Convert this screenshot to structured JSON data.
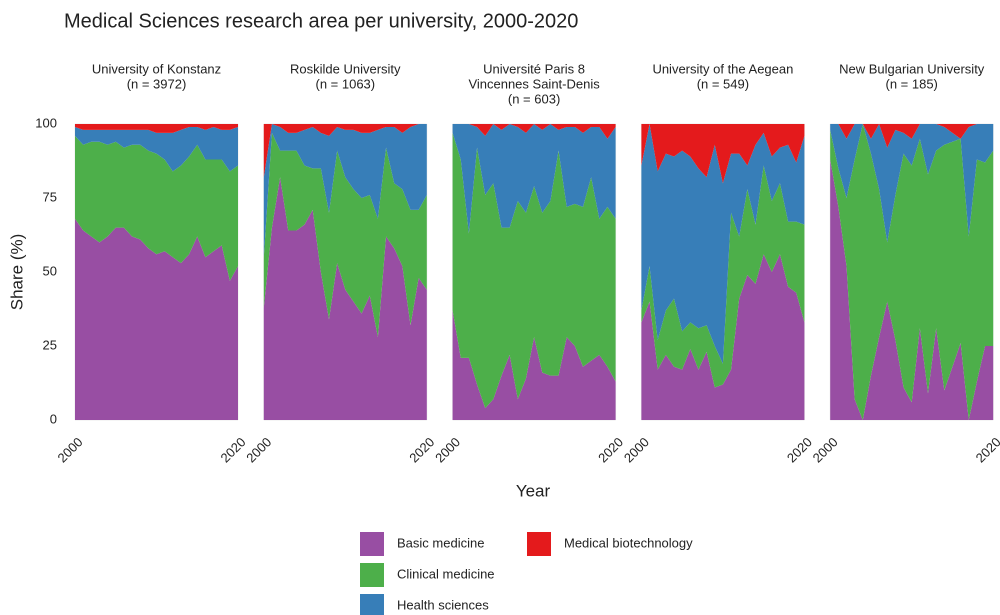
{
  "chart_data": {
    "type": "stacked_area",
    "title": "Medical Sciences research area per university, 2000-2020",
    "x_label": "Year",
    "y_label": "Share (%)",
    "x": [
      2000,
      2001,
      2002,
      2003,
      2004,
      2005,
      2006,
      2007,
      2008,
      2009,
      2010,
      2011,
      2012,
      2013,
      2014,
      2015,
      2016,
      2017,
      2018,
      2019,
      2020
    ],
    "xlim": [
      2000,
      2020
    ],
    "xticks": [
      2000,
      2020
    ],
    "ylim": [
      0,
      100
    ],
    "yticks": [
      0,
      25,
      50,
      75,
      100
    ],
    "grid": true,
    "legend": "bottom",
    "series": [
      {
        "name": "Basic medicine",
        "color": "#984ea3"
      },
      {
        "name": "Clinical medicine",
        "color": "#4daf4a"
      },
      {
        "name": "Health sciences",
        "color": "#377eb8"
      },
      {
        "name": "Medical biotechnology",
        "color": "#e41a1c"
      }
    ],
    "facets": [
      {
        "title": [
          "University of Konstanz",
          "(n = 3972)"
        ],
        "series": [
          {
            "values": [
              68,
              64,
              62,
              60,
              62,
              65,
              65,
              62,
              61,
              58,
              56,
              57,
              55,
              53,
              56,
              62,
              55,
              57,
              59,
              47,
              52
            ]
          },
          {
            "values": [
              28,
              29,
              32,
              34,
              31,
              29,
              27,
              31,
              32,
              33,
              34,
              31,
              29,
              33,
              33,
              31,
              33,
              31,
              29,
              37,
              34
            ]
          },
          {
            "values": [
              3,
              5,
              4,
              4,
              5,
              4,
              6,
              5,
              5,
              7,
              7,
              9,
              13,
              12,
              10,
              6,
              10,
              11,
              10,
              14,
              13
            ]
          },
          {
            "values": [
              1,
              2,
              2,
              2,
              2,
              2,
              2,
              2,
              2,
              2,
              3,
              3,
              3,
              2,
              1,
              1,
              2,
              1,
              2,
              2,
              1
            ]
          }
        ]
      },
      {
        "title": [
          "Roskilde University",
          "(n = 1063)"
        ],
        "series": [
          {
            "values": [
              38,
              65,
              82,
              64,
              64,
              66,
              71,
              50,
              34,
              53,
              44,
              40,
              36,
              42,
              28,
              62,
              58,
              52,
              32,
              48,
              44
            ]
          },
          {
            "values": [
              17,
              32,
              9,
              27,
              27,
              20,
              14,
              35,
              36,
              38,
              38,
              38,
              39,
              34,
              40,
              30,
              22,
              26,
              39,
              23,
              32
            ]
          },
          {
            "values": [
              27,
              3,
              8,
              6,
              6,
              12,
              14,
              12,
              26,
              8,
              16,
              20,
              22,
              21,
              30,
              7,
              19,
              19,
              28,
              29,
              24
            ]
          },
          {
            "values": [
              18,
              0,
              1,
              3,
              3,
              2,
              1,
              3,
              4,
              1,
              2,
              2,
              3,
              3,
              2,
              1,
              1,
              3,
              1,
              0,
              0
            ]
          }
        ]
      },
      {
        "title": [
          "Université Paris 8",
          "Vincennes Saint-Denis",
          "(n = 603)"
        ],
        "series": [
          {
            "values": [
              37,
              21,
              21,
              12,
              4,
              7,
              15,
              22,
              7,
              14,
              28,
              16,
              15,
              15,
              28,
              25,
              18,
              20,
              22,
              18,
              13
            ]
          },
          {
            "values": [
              60,
              67,
              42,
              80,
              72,
              73,
              50,
              43,
              67,
              56,
              51,
              54,
              59,
              76,
              44,
              48,
              54,
              62,
              46,
              54,
              55
            ]
          },
          {
            "values": [
              3,
              12,
              37,
              7,
              20,
              20,
              33,
              35,
              25,
              27,
              21,
              28,
              26,
              7,
              27,
              26,
              25,
              17,
              31,
              23,
              31
            ]
          },
          {
            "values": [
              0,
              0,
              0,
              1,
              4,
              0,
              2,
              0,
              1,
              3,
              0,
              2,
              0,
              2,
              1,
              1,
              3,
              1,
              1,
              5,
              1
            ]
          }
        ]
      },
      {
        "title": [
          "University of the Aegean",
          "(n = 549)"
        ],
        "series": [
          {
            "values": [
              33,
              40,
              17,
              22,
              18,
              17,
              24,
              17,
              23,
              11,
              12,
              17,
              41,
              49,
              46,
              56,
              50,
              56,
              45,
              43,
              33
            ]
          },
          {
            "values": [
              4,
              12,
              10,
              15,
              23,
              13,
              9,
              14,
              9,
              14,
              7,
              53,
              21,
              29,
              20,
              30,
              24,
              24,
              22,
              24,
              33
            ]
          },
          {
            "values": [
              49,
              48,
              57,
              53,
              48,
              61,
              56,
              54,
              50,
              68,
              61,
              20,
              28,
              8,
              27,
              11,
              15,
              12,
              26,
              20,
              30
            ]
          },
          {
            "values": [
              14,
              0,
              16,
              10,
              11,
              9,
              11,
              15,
              18,
              7,
              20,
              10,
              10,
              14,
              7,
              3,
              11,
              8,
              7,
              13,
              4
            ]
          }
        ]
      },
      {
        "title": [
          "New Bulgarian University",
          "(n = 185)"
        ],
        "series": [
          {
            "values": [
              88,
              72,
              52,
              7,
              0,
              15,
              28,
              40,
              27,
              11,
              6,
              31,
              9,
              31,
              10,
              18,
              26,
              0,
              13,
              25,
              25
            ]
          },
          {
            "values": [
              10,
              13,
              23,
              81,
              100,
              75,
              50,
              20,
              49,
              79,
              80,
              64,
              74,
              60,
              83,
              76,
              69,
              62,
              75,
              62,
              66
            ]
          },
          {
            "values": [
              2,
              15,
              20,
              12,
              0,
              5,
              22,
              32,
              22,
              7,
              9,
              5,
              17,
              9,
              6,
              3,
              0,
              37,
              12,
              13,
              9
            ]
          },
          {
            "values": [
              0,
              0,
              5,
              0,
              0,
              5,
              0,
              8,
              2,
              3,
              5,
              0,
              0,
              0,
              1,
              3,
              5,
              1,
              0,
              0,
              0
            ]
          }
        ]
      }
    ]
  }
}
